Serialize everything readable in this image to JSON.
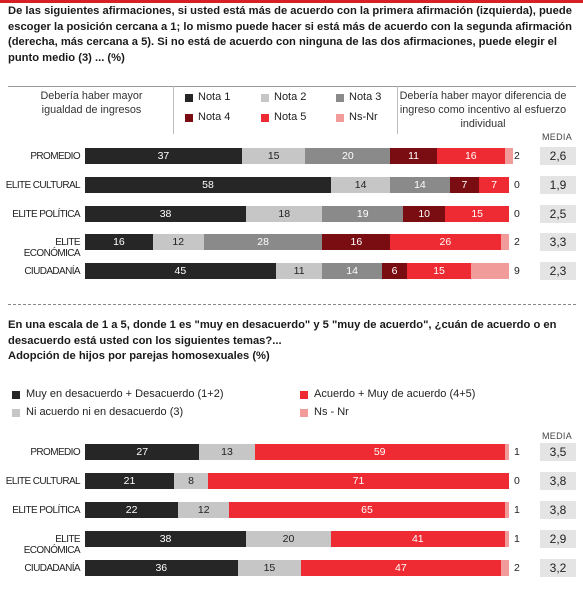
{
  "colors": {
    "nota1": "#262626",
    "nota2": "#c6c6c6",
    "nota3": "#8a8a8a",
    "nota4": "#7a0d12",
    "nota5": "#ee2b32",
    "nsnr": "#f29b9b",
    "media_bg": "#e4e4e4",
    "topline": "#d71f26"
  },
  "q1": {
    "text": "De las siguientes afirmaciones, si usted está más de acuerdo con la primera afirmación (izquierda), puede escoger la posición cercana a 1; lo mismo puede hacer si está más de acuerdo con la segunda afirmación (derecha, más cercana a 5). Si no está de acuerdo con ninguna de las dos afirmaciones, puede elegir el punto medio (3) ... (%)",
    "left_label": "Debería haber mayor igualdad de ingresos",
    "right_label": "Debería haber mayor diferencia de ingreso como incentivo al esfuerzo individual",
    "legend": [
      "Nota 1",
      "Nota 2",
      "Nota 3",
      "Nota 4",
      "Nota 5",
      "Ns-Nr"
    ],
    "media_label": "MEDIA"
  },
  "q2": {
    "text": "En una escala de 1 a 5, donde 1 es \"muy en desacuerdo\" y 5 \"muy de acuerdo\", ¿cuán de acuerdo o en desacuerdo está usted con los siguientes temas?...",
    "subtitle": "Adopción de hijos por parejas homosexuales (%)",
    "legend": [
      "Muy en desacuerdo + Desacuerdo (1+2)",
      "Acuerdo + Muy de acuerdo (4+5)",
      "Ni acuerdo ni en desacuerdo (3)",
      "Ns - Nr"
    ],
    "media_label": "MEDIA"
  },
  "chart_data": [
    {
      "type": "bar",
      "stacked": true,
      "orientation": "horizontal",
      "categories": [
        "PROMEDIO",
        "ELITE CULTURAL",
        "ELITE POLÍTICA",
        "ELITE ECONÓMICA",
        "CIUDADANÍA"
      ],
      "series": [
        {
          "name": "Nota 1",
          "values": [
            37,
            58,
            38,
            16,
            45
          ]
        },
        {
          "name": "Nota 2",
          "values": [
            15,
            14,
            18,
            12,
            11
          ]
        },
        {
          "name": "Nota 3",
          "values": [
            20,
            14,
            19,
            28,
            14
          ]
        },
        {
          "name": "Nota 4",
          "values": [
            11,
            7,
            10,
            16,
            6
          ]
        },
        {
          "name": "Nota 5",
          "values": [
            16,
            7,
            15,
            26,
            15
          ]
        },
        {
          "name": "Ns-Nr",
          "values": [
            2,
            0,
            0,
            2,
            9
          ]
        }
      ],
      "media": [
        "2,6",
        "1,9",
        "2,5",
        "3,3",
        "2,3"
      ]
    },
    {
      "type": "bar",
      "stacked": true,
      "orientation": "horizontal",
      "categories": [
        "PROMEDIO",
        "ELITE CULTURAL",
        "ELITE POLÍTICA",
        "ELITE ECONÓMICA",
        "CIUDADANÍA"
      ],
      "series": [
        {
          "name": "Muy en desacuerdo + Desacuerdo (1+2)",
          "values": [
            27,
            21,
            22,
            38,
            36
          ]
        },
        {
          "name": "Ni acuerdo ni en desacuerdo (3)",
          "values": [
            13,
            8,
            12,
            20,
            15
          ]
        },
        {
          "name": "Acuerdo + Muy de acuerdo (4+5)",
          "values": [
            59,
            71,
            65,
            41,
            47
          ]
        },
        {
          "name": "Ns - Nr",
          "values": [
            1,
            0,
            1,
            1,
            2
          ]
        }
      ],
      "media": [
        "3,5",
        "3,8",
        "3,8",
        "2,9",
        "3,2"
      ]
    }
  ]
}
